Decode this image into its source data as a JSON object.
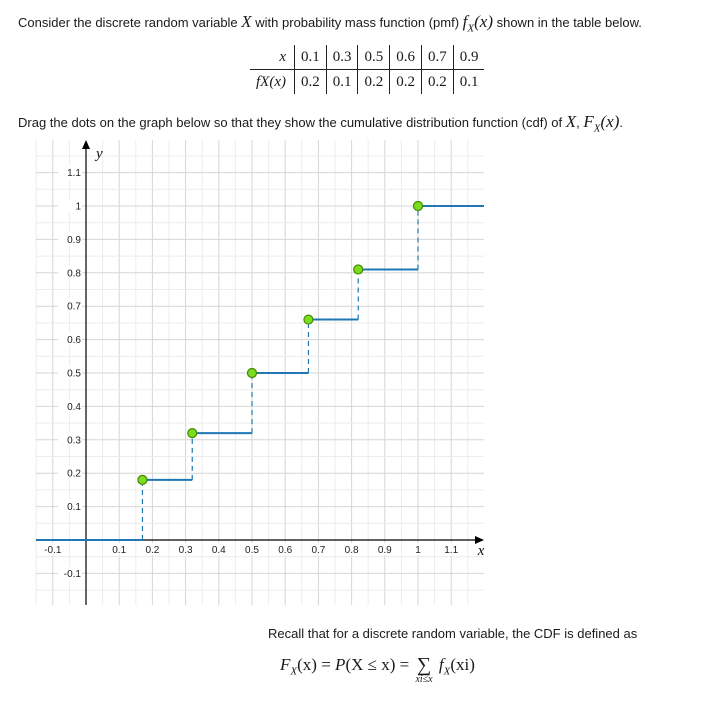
{
  "intro": {
    "t1": "Consider the discrete random variable ",
    "var": "X",
    "t2": " with probability mass function (pmf) ",
    "pmf_sym": "f",
    "pmf_sub": "X",
    "pmf_arg": "(x)",
    "t3": " shown in the table below."
  },
  "table": {
    "row1_label": "x",
    "row2_label": "fX(x)",
    "x_values": [
      "0.1",
      "0.3",
      "0.5",
      "0.6",
      "0.7",
      "0.9"
    ],
    "p_values": [
      "0.2",
      "0.1",
      "0.2",
      "0.2",
      "0.2",
      "0.1"
    ]
  },
  "instruction": {
    "t1": "Drag the dots on the graph below so that they show the cumulative distribution function (cdf) of ",
    "var": "X",
    "t2": ", ",
    "cdf_sym": "F",
    "cdf_sub": "X",
    "cdf_arg": "(x)",
    "t3": "."
  },
  "chart_data": {
    "type": "line",
    "xlabel": "x",
    "ylabel": "y",
    "xlim": [
      -0.15,
      1.22
    ],
    "ylim": [
      -0.2,
      1.2
    ],
    "x_ticks": [
      "-0.1",
      "0.1",
      "0.2",
      "0.3",
      "0.4",
      "0.5",
      "0.6",
      "0.7",
      "0.8",
      "0.9",
      "1",
      "1.1"
    ],
    "x_tick_values": [
      -0.1,
      0.1,
      0.2,
      0.3,
      0.4,
      0.5,
      0.6,
      0.7,
      0.8,
      0.9,
      1,
      1.1
    ],
    "y_ticks": [
      "1.1",
      "1",
      "0.9",
      "0.8",
      "0.7",
      "0.6",
      "0.5",
      "0.4",
      "0.3",
      "0.2",
      "0.1",
      "-0.1"
    ],
    "y_tick_values": [
      1.1,
      1,
      0.9,
      0.8,
      0.7,
      0.6,
      0.5,
      0.4,
      0.3,
      0.2,
      0.1,
      -0.1
    ],
    "grid": true,
    "step_color": "#1f77b4",
    "dot_color": "#7ddc1f",
    "steps": [
      {
        "x_start": -0.15,
        "x_end": 0.17,
        "y": 0
      },
      {
        "x_start": 0.17,
        "x_end": 0.32,
        "y": 0.18
      },
      {
        "x_start": 0.32,
        "x_end": 0.5,
        "y": 0.32
      },
      {
        "x_start": 0.5,
        "x_end": 0.67,
        "y": 0.5
      },
      {
        "x_start": 0.67,
        "x_end": 0.82,
        "y": 0.66
      },
      {
        "x_start": 0.82,
        "x_end": 1.0,
        "y": 0.81
      },
      {
        "x_start": 1.0,
        "x_end": 1.22,
        "y": 1.0
      }
    ],
    "dots": [
      {
        "x": 0.17,
        "y": 0.18
      },
      {
        "x": 0.32,
        "y": 0.32
      },
      {
        "x": 0.5,
        "y": 0.5
      },
      {
        "x": 0.67,
        "y": 0.66
      },
      {
        "x": 0.82,
        "y": 0.81
      },
      {
        "x": 1.0,
        "y": 1.0
      }
    ]
  },
  "recall": {
    "text": "Recall that for a discrete random variable, the CDF is defined as"
  },
  "formula": {
    "lhs": "F",
    "lhs_sub": "X",
    "lhs_arg": "(x) = ",
    "P": "P",
    "inside": "(X ≤ x) = ",
    "sigma": "∑",
    "sigma_sub": "xi≤x",
    "rhs": " f",
    "rhs_sub": "X",
    "rhs_arg": "(xi)"
  }
}
